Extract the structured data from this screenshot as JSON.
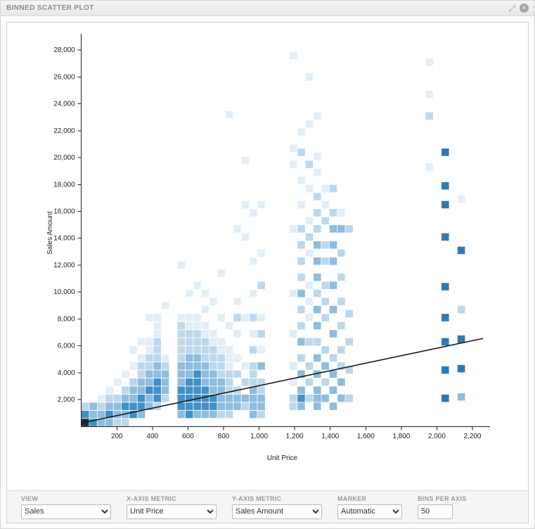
{
  "header": {
    "title": "BINNED SCATTER PLOT"
  },
  "icons": {
    "expand": "⤢",
    "close": "×"
  },
  "controls": [
    {
      "label": "VIEW",
      "value": "Sales"
    },
    {
      "label": "X-AXIS METRIC",
      "value": "Unit Price"
    },
    {
      "label": "Y-AXIS METRIC",
      "value": "Sales Amount"
    },
    {
      "label": "MARKER",
      "value": "Automatic"
    },
    {
      "label": "BINS PER AXIS",
      "value": "50"
    }
  ],
  "chart_data": {
    "type": "scatter",
    "subtype": "binned-density-squares",
    "title": "",
    "xlabel": "Unit Price",
    "ylabel": "Sales Amount",
    "xlim": [
      0,
      2260
    ],
    "ylim": [
      0,
      28800
    ],
    "grid": false,
    "legend": "none",
    "bins_per_axis": 50,
    "x_ticks": {
      "values": [
        200,
        400,
        600,
        800,
        1000,
        1200,
        1400,
        1600,
        1800,
        2000,
        2200
      ],
      "labels": [
        "200",
        "400",
        "600",
        "800",
        "1,000",
        "1,200",
        "1,400",
        "1,600",
        "1,800",
        "2,000",
        "2,200"
      ]
    },
    "y_ticks": {
      "values": [
        2000,
        4000,
        6000,
        8000,
        10000,
        12000,
        14000,
        16000,
        18000,
        20000,
        22000,
        24000,
        26000,
        28000
      ],
      "labels": [
        "2,000",
        "4,000",
        "6,000",
        "8,000",
        "10,000",
        "12,000",
        "14,000",
        "16,000",
        "18,000",
        "20,000",
        "22,000",
        "24,000",
        "26,000",
        "28,000"
      ]
    },
    "level_colors": {
      "1": "#e3eef7",
      "2": "#bdd8ec",
      "3": "#8ebddf",
      "4": "#4190c6",
      "5": "#2f7ab5",
      "6": "#1c2b3a"
    },
    "trend_line": {
      "x": [
        0,
        2260
      ],
      "y": [
        250,
        6550
      ],
      "color": "#1a1a1a"
    },
    "points": [
      [
        22,
        300,
        6
      ],
      [
        22,
        900,
        4
      ],
      [
        22,
        1500,
        2
      ],
      [
        67,
        300,
        4
      ],
      [
        67,
        900,
        3
      ],
      [
        67,
        1500,
        3
      ],
      [
        112,
        300,
        3
      ],
      [
        112,
        900,
        3
      ],
      [
        112,
        1500,
        2
      ],
      [
        112,
        2100,
        1
      ],
      [
        157,
        300,
        3
      ],
      [
        157,
        900,
        4
      ],
      [
        157,
        1500,
        3
      ],
      [
        157,
        2100,
        2
      ],
      [
        157,
        2700,
        1
      ],
      [
        202,
        300,
        2
      ],
      [
        202,
        900,
        3
      ],
      [
        202,
        1500,
        3
      ],
      [
        202,
        2100,
        2
      ],
      [
        202,
        3300,
        1
      ],
      [
        247,
        300,
        2
      ],
      [
        247,
        900,
        3
      ],
      [
        247,
        1500,
        4
      ],
      [
        247,
        2100,
        3
      ],
      [
        247,
        2700,
        2
      ],
      [
        247,
        3900,
        1
      ],
      [
        292,
        900,
        4
      ],
      [
        292,
        1500,
        4
      ],
      [
        292,
        2100,
        3
      ],
      [
        292,
        2700,
        3
      ],
      [
        292,
        3300,
        2
      ],
      [
        292,
        4500,
        1
      ],
      [
        292,
        5700,
        1
      ],
      [
        337,
        900,
        3
      ],
      [
        337,
        1500,
        4
      ],
      [
        337,
        2100,
        4
      ],
      [
        337,
        2700,
        3
      ],
      [
        337,
        3300,
        3
      ],
      [
        337,
        3900,
        2
      ],
      [
        337,
        4500,
        2
      ],
      [
        337,
        5100,
        1
      ],
      [
        337,
        6300,
        1
      ],
      [
        382,
        1500,
        3
      ],
      [
        382,
        2100,
        3
      ],
      [
        382,
        2700,
        4
      ],
      [
        382,
        3300,
        3
      ],
      [
        382,
        3900,
        3
      ],
      [
        382,
        4500,
        2
      ],
      [
        382,
        5100,
        2
      ],
      [
        382,
        5700,
        1
      ],
      [
        382,
        6300,
        1
      ],
      [
        382,
        8100,
        1
      ],
      [
        427,
        1500,
        2
      ],
      [
        427,
        2100,
        4
      ],
      [
        427,
        2700,
        4
      ],
      [
        427,
        3300,
        4
      ],
      [
        427,
        3900,
        3
      ],
      [
        427,
        4500,
        3
      ],
      [
        427,
        5100,
        2
      ],
      [
        427,
        5700,
        2
      ],
      [
        427,
        6300,
        2
      ],
      [
        427,
        6900,
        1
      ],
      [
        427,
        7500,
        1
      ],
      [
        427,
        8100,
        1
      ],
      [
        472,
        2100,
        2
      ],
      [
        472,
        2700,
        3
      ],
      [
        472,
        3300,
        3
      ],
      [
        472,
        3900,
        3
      ],
      [
        472,
        4500,
        2
      ],
      [
        472,
        5100,
        1
      ],
      [
        472,
        9000,
        1
      ],
      [
        562,
        900,
        3
      ],
      [
        562,
        1500,
        4
      ],
      [
        562,
        2100,
        4
      ],
      [
        562,
        2700,
        4
      ],
      [
        562,
        3300,
        3
      ],
      [
        562,
        3900,
        3
      ],
      [
        562,
        4500,
        3
      ],
      [
        562,
        5100,
        2
      ],
      [
        562,
        5700,
        2
      ],
      [
        562,
        6300,
        2
      ],
      [
        562,
        6900,
        2
      ],
      [
        562,
        7500,
        2
      ],
      [
        562,
        8100,
        1
      ],
      [
        562,
        12000,
        1
      ],
      [
        607,
        900,
        4
      ],
      [
        607,
        1500,
        4
      ],
      [
        607,
        2100,
        4
      ],
      [
        607,
        2700,
        4
      ],
      [
        607,
        3300,
        4
      ],
      [
        607,
        3900,
        3
      ],
      [
        607,
        4500,
        3
      ],
      [
        607,
        5100,
        3
      ],
      [
        607,
        5700,
        2
      ],
      [
        607,
        6300,
        2
      ],
      [
        607,
        6900,
        2
      ],
      [
        607,
        7500,
        1
      ],
      [
        607,
        8100,
        1
      ],
      [
        607,
        9900,
        1
      ],
      [
        652,
        900,
        3
      ],
      [
        652,
        1500,
        4
      ],
      [
        652,
        2100,
        4
      ],
      [
        652,
        2700,
        4
      ],
      [
        652,
        3300,
        4
      ],
      [
        652,
        3900,
        4
      ],
      [
        652,
        4500,
        3
      ],
      [
        652,
        5100,
        3
      ],
      [
        652,
        5700,
        2
      ],
      [
        652,
        6300,
        2
      ],
      [
        652,
        6900,
        2
      ],
      [
        652,
        7500,
        1
      ],
      [
        652,
        8100,
        1
      ],
      [
        652,
        10500,
        1
      ],
      [
        697,
        900,
        3
      ],
      [
        697,
        1500,
        4
      ],
      [
        697,
        2100,
        4
      ],
      [
        697,
        2700,
        4
      ],
      [
        697,
        3300,
        3
      ],
      [
        697,
        3900,
        3
      ],
      [
        697,
        4500,
        3
      ],
      [
        697,
        5100,
        2
      ],
      [
        697,
        5700,
        2
      ],
      [
        697,
        6300,
        2
      ],
      [
        697,
        6900,
        1
      ],
      [
        697,
        7500,
        1
      ],
      [
        697,
        8700,
        1
      ],
      [
        697,
        9900,
        1
      ],
      [
        742,
        900,
        3
      ],
      [
        742,
        1500,
        4
      ],
      [
        742,
        2100,
        4
      ],
      [
        742,
        2700,
        3
      ],
      [
        742,
        3300,
        3
      ],
      [
        742,
        3900,
        3
      ],
      [
        742,
        4500,
        2
      ],
      [
        742,
        5100,
        2
      ],
      [
        742,
        5700,
        2
      ],
      [
        742,
        6300,
        1
      ],
      [
        742,
        6900,
        1
      ],
      [
        742,
        9300,
        1
      ],
      [
        787,
        900,
        2
      ],
      [
        787,
        1500,
        3
      ],
      [
        787,
        2100,
        3
      ],
      [
        787,
        2700,
        3
      ],
      [
        787,
        3300,
        3
      ],
      [
        787,
        3900,
        2
      ],
      [
        787,
        4500,
        2
      ],
      [
        787,
        5100,
        2
      ],
      [
        787,
        5700,
        1
      ],
      [
        787,
        6300,
        1
      ],
      [
        787,
        8100,
        1
      ],
      [
        787,
        11400,
        1
      ],
      [
        832,
        900,
        2
      ],
      [
        832,
        1500,
        3
      ],
      [
        832,
        2100,
        3
      ],
      [
        832,
        2700,
        2
      ],
      [
        832,
        3300,
        2
      ],
      [
        832,
        3900,
        2
      ],
      [
        832,
        4500,
        1
      ],
      [
        832,
        5100,
        1
      ],
      [
        832,
        5700,
        1
      ],
      [
        832,
        7500,
        1
      ],
      [
        832,
        23200,
        1
      ],
      [
        877,
        1500,
        3
      ],
      [
        877,
        2100,
        3
      ],
      [
        877,
        2700,
        2
      ],
      [
        877,
        3900,
        2
      ],
      [
        877,
        5100,
        1
      ],
      [
        877,
        6900,
        1
      ],
      [
        877,
        8100,
        2
      ],
      [
        877,
        9300,
        1
      ],
      [
        877,
        14700,
        1
      ],
      [
        922,
        1500,
        2
      ],
      [
        922,
        2100,
        3
      ],
      [
        922,
        3300,
        2
      ],
      [
        922,
        4500,
        1
      ],
      [
        922,
        8100,
        1
      ],
      [
        922,
        14100,
        1
      ],
      [
        922,
        16500,
        1
      ],
      [
        922,
        19800,
        1
      ],
      [
        967,
        900,
        3
      ],
      [
        967,
        1500,
        3
      ],
      [
        967,
        2100,
        3
      ],
      [
        967,
        2700,
        3
      ],
      [
        967,
        3300,
        2
      ],
      [
        967,
        3900,
        2
      ],
      [
        967,
        4500,
        2
      ],
      [
        967,
        5700,
        2
      ],
      [
        967,
        6900,
        1
      ],
      [
        967,
        8100,
        2
      ],
      [
        967,
        9900,
        1
      ],
      [
        967,
        12300,
        1
      ],
      [
        967,
        15900,
        1
      ],
      [
        1012,
        900,
        2
      ],
      [
        1012,
        1500,
        3
      ],
      [
        1012,
        2100,
        3
      ],
      [
        1012,
        2700,
        2
      ],
      [
        1012,
        3300,
        2
      ],
      [
        1012,
        4500,
        3
      ],
      [
        1012,
        5700,
        1
      ],
      [
        1012,
        6900,
        2
      ],
      [
        1012,
        8100,
        1
      ],
      [
        1012,
        10500,
        2
      ],
      [
        1012,
        12900,
        1
      ],
      [
        1012,
        16500,
        1
      ],
      [
        1192,
        1500,
        2
      ],
      [
        1192,
        2100,
        2
      ],
      [
        1192,
        3300,
        1
      ],
      [
        1192,
        4500,
        1
      ],
      [
        1192,
        6900,
        1
      ],
      [
        1192,
        9900,
        1
      ],
      [
        1192,
        14700,
        1
      ],
      [
        1192,
        19500,
        1
      ],
      [
        1192,
        20700,
        1
      ],
      [
        1192,
        27600,
        1
      ],
      [
        1237,
        1500,
        3
      ],
      [
        1237,
        2100,
        4
      ],
      [
        1237,
        2700,
        3
      ],
      [
        1237,
        3900,
        3
      ],
      [
        1237,
        5100,
        2
      ],
      [
        1237,
        6300,
        3
      ],
      [
        1237,
        7500,
        2
      ],
      [
        1237,
        8700,
        2
      ],
      [
        1237,
        9900,
        3
      ],
      [
        1237,
        11100,
        2
      ],
      [
        1237,
        12300,
        2
      ],
      [
        1237,
        13500,
        2
      ],
      [
        1237,
        14700,
        2
      ],
      [
        1237,
        16500,
        1
      ],
      [
        1237,
        18300,
        1
      ],
      [
        1237,
        20400,
        2
      ],
      [
        1237,
        21900,
        1
      ],
      [
        1282,
        2100,
        2
      ],
      [
        1282,
        3300,
        2
      ],
      [
        1282,
        4500,
        2
      ],
      [
        1282,
        6300,
        2
      ],
      [
        1282,
        8100,
        1
      ],
      [
        1282,
        9300,
        1
      ],
      [
        1282,
        10500,
        1
      ],
      [
        1282,
        12900,
        1
      ],
      [
        1282,
        14100,
        2
      ],
      [
        1282,
        15300,
        1
      ],
      [
        1282,
        17700,
        1
      ],
      [
        1282,
        19500,
        2
      ],
      [
        1282,
        22500,
        1
      ],
      [
        1282,
        26000,
        1
      ],
      [
        1327,
        1500,
        3
      ],
      [
        1327,
        2100,
        3
      ],
      [
        1327,
        2700,
        3
      ],
      [
        1327,
        3900,
        3
      ],
      [
        1327,
        5100,
        3
      ],
      [
        1327,
        6300,
        2
      ],
      [
        1327,
        7500,
        3
      ],
      [
        1327,
        8700,
        3
      ],
      [
        1327,
        9900,
        2
      ],
      [
        1327,
        11100,
        3
      ],
      [
        1327,
        12300,
        3
      ],
      [
        1327,
        13500,
        3
      ],
      [
        1327,
        14700,
        2
      ],
      [
        1327,
        15900,
        2
      ],
      [
        1327,
        17100,
        2
      ],
      [
        1327,
        18900,
        1
      ],
      [
        1327,
        20100,
        1
      ],
      [
        1327,
        23100,
        1
      ],
      [
        1372,
        2100,
        3
      ],
      [
        1372,
        3300,
        2
      ],
      [
        1372,
        4500,
        3
      ],
      [
        1372,
        5700,
        2
      ],
      [
        1372,
        8100,
        2
      ],
      [
        1372,
        9300,
        2
      ],
      [
        1372,
        10500,
        2
      ],
      [
        1372,
        12300,
        2
      ],
      [
        1372,
        13500,
        2
      ],
      [
        1372,
        15300,
        2
      ],
      [
        1372,
        16500,
        1
      ],
      [
        1372,
        17700,
        1
      ],
      [
        1417,
        1500,
        3
      ],
      [
        1417,
        2700,
        3
      ],
      [
        1417,
        3900,
        3
      ],
      [
        1417,
        5100,
        2
      ],
      [
        1417,
        6900,
        3
      ],
      [
        1417,
        8700,
        3
      ],
      [
        1417,
        10500,
        3
      ],
      [
        1417,
        12300,
        3
      ],
      [
        1417,
        13500,
        3
      ],
      [
        1417,
        14700,
        3
      ],
      [
        1417,
        15900,
        2
      ],
      [
        1417,
        17700,
        2
      ],
      [
        1462,
        2100,
        3
      ],
      [
        1462,
        3300,
        3
      ],
      [
        1462,
        4500,
        2
      ],
      [
        1462,
        5700,
        2
      ],
      [
        1462,
        7500,
        2
      ],
      [
        1462,
        9300,
        2
      ],
      [
        1462,
        11100,
        2
      ],
      [
        1462,
        12900,
        2
      ],
      [
        1462,
        14700,
        3
      ],
      [
        1462,
        15900,
        1
      ],
      [
        1507,
        2100,
        2
      ],
      [
        1507,
        4200,
        2
      ],
      [
        1507,
        6300,
        2
      ],
      [
        1507,
        8400,
        2
      ],
      [
        1507,
        14700,
        2
      ],
      [
        1957,
        19300,
        1
      ],
      [
        1957,
        23100,
        2
      ],
      [
        1957,
        24700,
        1
      ],
      [
        1957,
        27100,
        1
      ],
      [
        2047,
        2100,
        5
      ],
      [
        2047,
        4200,
        5
      ],
      [
        2047,
        6300,
        5
      ],
      [
        2047,
        8100,
        5
      ],
      [
        2047,
        10400,
        5
      ],
      [
        2047,
        14100,
        5
      ],
      [
        2047,
        16500,
        5
      ],
      [
        2047,
        17900,
        5
      ],
      [
        2047,
        20400,
        5
      ],
      [
        2137,
        2200,
        3
      ],
      [
        2137,
        4300,
        5
      ],
      [
        2137,
        6500,
        5
      ],
      [
        2137,
        8700,
        2
      ],
      [
        2137,
        13100,
        5
      ],
      [
        2137,
        16900,
        1
      ]
    ]
  }
}
